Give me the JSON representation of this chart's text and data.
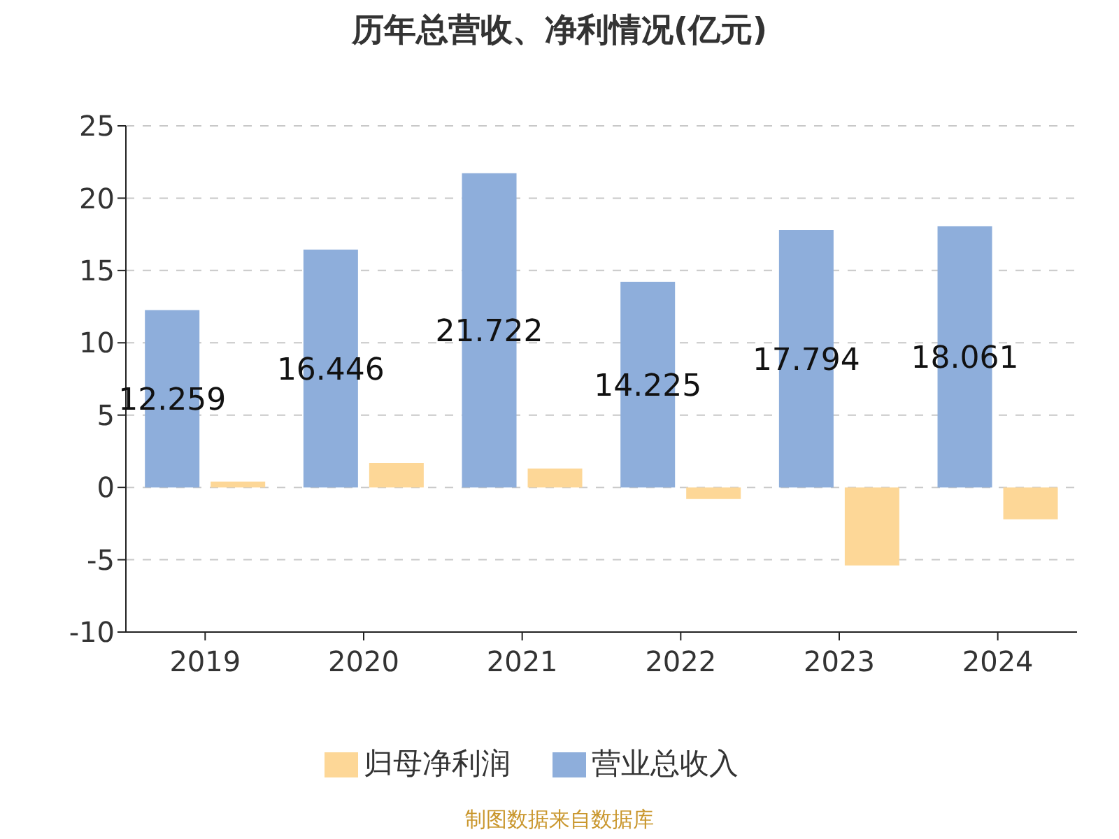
{
  "chart_data": {
    "type": "bar",
    "title": "历年总营收、净利情况(亿元)",
    "categories": [
      "2019",
      "2020",
      "2021",
      "2022",
      "2023",
      "2024"
    ],
    "series": [
      {
        "name": "营业总收入",
        "color": "#8eaedb",
        "values": [
          12.259,
          16.446,
          21.722,
          14.225,
          17.794,
          18.061
        ],
        "value_labels": [
          "12.259",
          "16.446",
          "21.722",
          "14.225",
          "17.794",
          "18.061"
        ]
      },
      {
        "name": "归母净利润",
        "color": "#fdd797",
        "values": [
          0.4,
          1.7,
          1.3,
          -0.8,
          -5.4,
          -2.2
        ]
      }
    ],
    "ylim": [
      -10,
      25
    ],
    "yticks": [
      -10,
      -5,
      0,
      5,
      10,
      15,
      20,
      25
    ],
    "grid": "y",
    "legend": "bottom",
    "annotations": [
      "制图数据来自数据库"
    ]
  }
}
